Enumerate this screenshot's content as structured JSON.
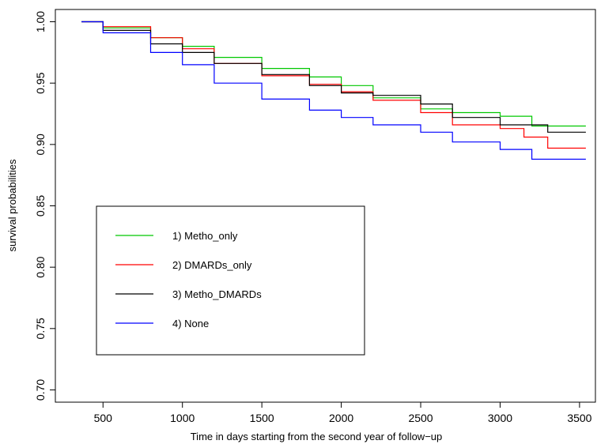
{
  "chart_data": {
    "type": "line",
    "xlabel": "Time in days starting from the second year of follow−up",
    "ylabel": "survival probabilities",
    "xlim": [
      200,
      3600
    ],
    "ylim": [
      0.69,
      1.01
    ],
    "xticks": [
      {
        "value": 500,
        "label": "500"
      },
      {
        "value": 1000,
        "label": "1000"
      },
      {
        "value": 1500,
        "label": "1500"
      },
      {
        "value": 2000,
        "label": "2000"
      },
      {
        "value": 2500,
        "label": "2500"
      },
      {
        "value": 3000,
        "label": "3000"
      },
      {
        "value": 3500,
        "label": "3500"
      }
    ],
    "yticks": [
      {
        "value": 0.7,
        "label": "0.70"
      },
      {
        "value": 0.75,
        "label": "0.75"
      },
      {
        "value": 0.8,
        "label": "0.80"
      },
      {
        "value": 0.85,
        "label": "0.85"
      },
      {
        "value": 0.9,
        "label": "0.90"
      },
      {
        "value": 0.95,
        "label": "0.95"
      },
      {
        "value": 1.0,
        "label": "1.00"
      }
    ],
    "grid": false,
    "legend_position": "bottom-left",
    "series": [
      {
        "name": "1) Metho_only",
        "color": "#00c800",
        "x": [
          365,
          500,
          800,
          1000,
          1200,
          1500,
          1800,
          2000,
          2200,
          2500,
          2700,
          3000,
          3200,
          3540
        ],
        "y": [
          1.0,
          0.995,
          0.987,
          0.98,
          0.971,
          0.962,
          0.955,
          0.948,
          0.938,
          0.929,
          0.926,
          0.923,
          0.915,
          0.915
        ]
      },
      {
        "name": "2) DMARDs_only",
        "color": "#ff0000",
        "x": [
          365,
          500,
          800,
          1000,
          1200,
          1500,
          1800,
          2000,
          2200,
          2500,
          2700,
          3000,
          3150,
          3300,
          3540
        ],
        "y": [
          1.0,
          0.996,
          0.987,
          0.978,
          0.966,
          0.956,
          0.949,
          0.943,
          0.936,
          0.926,
          0.916,
          0.913,
          0.906,
          0.897,
          0.897
        ]
      },
      {
        "name": "3) Metho_DMARDs",
        "color": "#000000",
        "x": [
          365,
          500,
          800,
          1000,
          1200,
          1500,
          1800,
          2000,
          2200,
          2500,
          2700,
          3000,
          3300,
          3540
        ],
        "y": [
          1.0,
          0.993,
          0.982,
          0.975,
          0.966,
          0.957,
          0.948,
          0.942,
          0.94,
          0.933,
          0.922,
          0.916,
          0.91,
          0.91
        ]
      },
      {
        "name": "4) None",
        "color": "#0000ff",
        "x": [
          365,
          500,
          800,
          1000,
          1200,
          1500,
          1800,
          2000,
          2200,
          2500,
          2700,
          3000,
          3200,
          3540
        ],
        "y": [
          1.0,
          0.991,
          0.975,
          0.965,
          0.95,
          0.937,
          0.928,
          0.922,
          0.916,
          0.91,
          0.902,
          0.896,
          0.888,
          0.888
        ]
      }
    ]
  }
}
